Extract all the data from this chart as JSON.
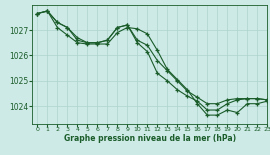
{
  "bg_color": "#ceeae6",
  "grid_color": "#aed4cf",
  "line_color": "#1a5c2a",
  "marker_color": "#1a5c2a",
  "xlabel": "Graphe pression niveau de la mer (hPa)",
  "xlabel_color": "#1a5c2a",
  "xlim": [
    -0.5,
    23
  ],
  "ylim": [
    1023.3,
    1028.0
  ],
  "yticks": [
    1024,
    1025,
    1026,
    1027
  ],
  "xticks": [
    0,
    1,
    2,
    3,
    4,
    5,
    6,
    7,
    8,
    9,
    10,
    11,
    12,
    13,
    14,
    15,
    16,
    17,
    18,
    19,
    20,
    21,
    22,
    23
  ],
  "series": [
    [
      1027.65,
      1027.75,
      1027.3,
      1027.1,
      1026.6,
      1026.5,
      1026.5,
      1026.6,
      1027.1,
      1027.2,
      1026.6,
      1026.4,
      1025.8,
      1025.4,
      1025.0,
      1024.6,
      1024.35,
      1024.1,
      1024.1,
      1024.25,
      1024.3,
      1024.3,
      1024.3,
      1024.25
    ],
    [
      1027.65,
      1027.75,
      1027.3,
      1027.1,
      1026.7,
      1026.5,
      1026.5,
      1026.6,
      1027.1,
      1027.2,
      1026.5,
      1026.15,
      1025.3,
      1025.0,
      1024.65,
      1024.4,
      1024.2,
      1023.85,
      1023.85,
      1024.1,
      1024.25,
      1024.3,
      1024.3,
      1024.25
    ],
    [
      1027.65,
      1027.75,
      1027.1,
      1026.8,
      1026.5,
      1026.45,
      1026.45,
      1026.45,
      1026.9,
      1027.1,
      1027.05,
      1026.85,
      1026.2,
      1025.45,
      1025.05,
      1024.65,
      1024.1,
      1023.65,
      1023.65,
      1023.85,
      1023.75,
      1024.1,
      1024.1,
      1024.2
    ]
  ]
}
